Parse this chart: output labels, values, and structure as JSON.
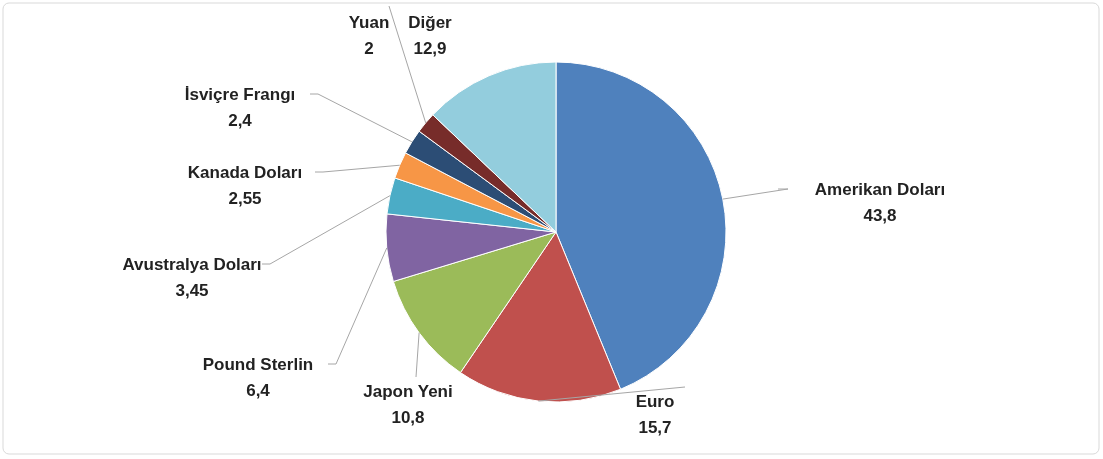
{
  "chart_data": {
    "type": "pie",
    "categories": [
      "Amerikan Doları",
      "Euro",
      "Japon Yeni",
      "Pound Sterlin",
      "Avustralya Doları",
      "Kanada Doları",
      "İsviçre Frangı",
      "Yuan",
      "Diğer"
    ],
    "values": [
      43.8,
      15.7,
      10.8,
      6.4,
      3.45,
      2.55,
      2.4,
      2,
      12.9
    ],
    "value_labels": [
      "43,8",
      "15,7",
      "10,8",
      "6,4",
      "3,45",
      "2,55",
      "2,4",
      "2",
      "12,9"
    ],
    "colors": [
      "#4f81bd",
      "#c0504d",
      "#9bbb59",
      "#8064a2",
      "#4bacc6",
      "#f79646",
      "#2c4d75",
      "#772c2a",
      "#93cddd"
    ],
    "legend": false
  }
}
